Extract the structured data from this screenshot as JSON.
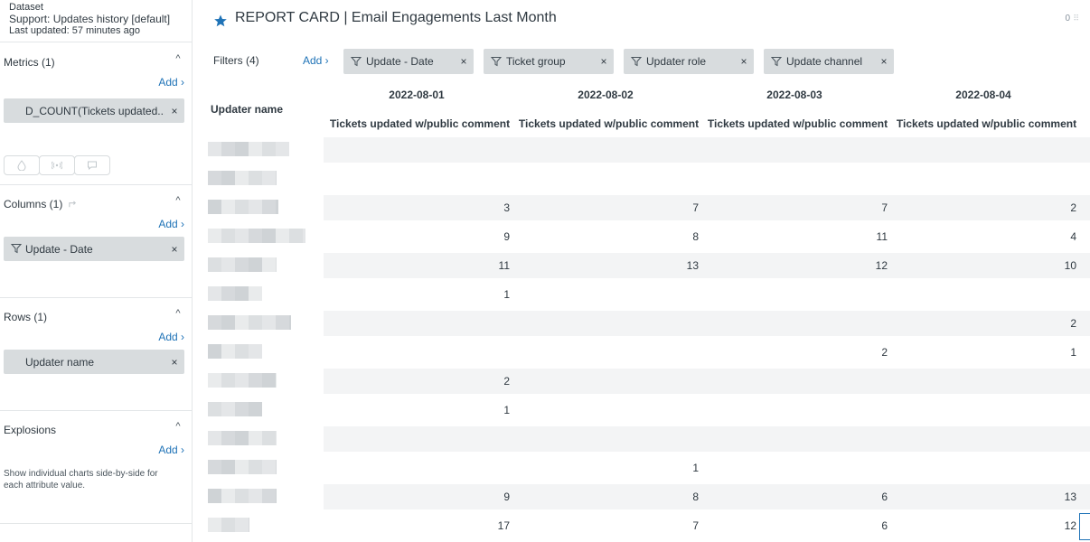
{
  "dataset": {
    "label": "Dataset",
    "name": "Support: Updates history [default]",
    "updated": "Last updated: 57 minutes ago"
  },
  "sidebar": {
    "metrics": {
      "title": "Metrics (1)",
      "add": "Add ›",
      "pill": "D_COUNT(Tickets updated..."
    },
    "columns": {
      "title": "Columns (1)",
      "add": "Add ›",
      "pill": "Update - Date"
    },
    "rows": {
      "title": "Rows (1)",
      "add": "Add ›",
      "pill": "Updater name"
    },
    "explosions": {
      "title": "Explosions",
      "add": "Add ›",
      "description": "Show individual charts side-by-side for each attribute value."
    },
    "remove_glyph": "×",
    "caret_glyph": "^"
  },
  "header": {
    "title": "REPORT CARD | Email Engagements Last Month",
    "right_text": "0"
  },
  "filters": {
    "label": "Filters (4)",
    "add": "Add ›",
    "chips": [
      "Update - Date",
      "Ticket group",
      "Updater role",
      "Update channel"
    ]
  },
  "table": {
    "row_header": "Updater name",
    "dates": [
      "2022-08-01",
      "2022-08-02",
      "2022-08-03",
      "2022-08-04"
    ],
    "metric_label": "Tickets updated w/public comment",
    "rows": [
      [
        "",
        "",
        "",
        ""
      ],
      [
        "",
        "",
        "",
        ""
      ],
      [
        "3",
        "7",
        "7",
        "2"
      ],
      [
        "9",
        "8",
        "11",
        "4"
      ],
      [
        "11",
        "13",
        "12",
        "10"
      ],
      [
        "1",
        "",
        "",
        ""
      ],
      [
        "",
        "",
        "",
        "2"
      ],
      [
        "",
        "",
        "2",
        "1"
      ],
      [
        "2",
        "",
        "",
        ""
      ],
      [
        "1",
        "",
        "",
        ""
      ],
      [
        "",
        "",
        "",
        ""
      ],
      [
        "",
        "1",
        "",
        ""
      ],
      [
        "9",
        "8",
        "6",
        "13"
      ],
      [
        "17",
        "7",
        "6",
        "12"
      ]
    ]
  },
  "colors": {
    "accent": "#1f73b7",
    "chip_bg": "#d8dcde",
    "stripe": "#f3f4f5"
  }
}
